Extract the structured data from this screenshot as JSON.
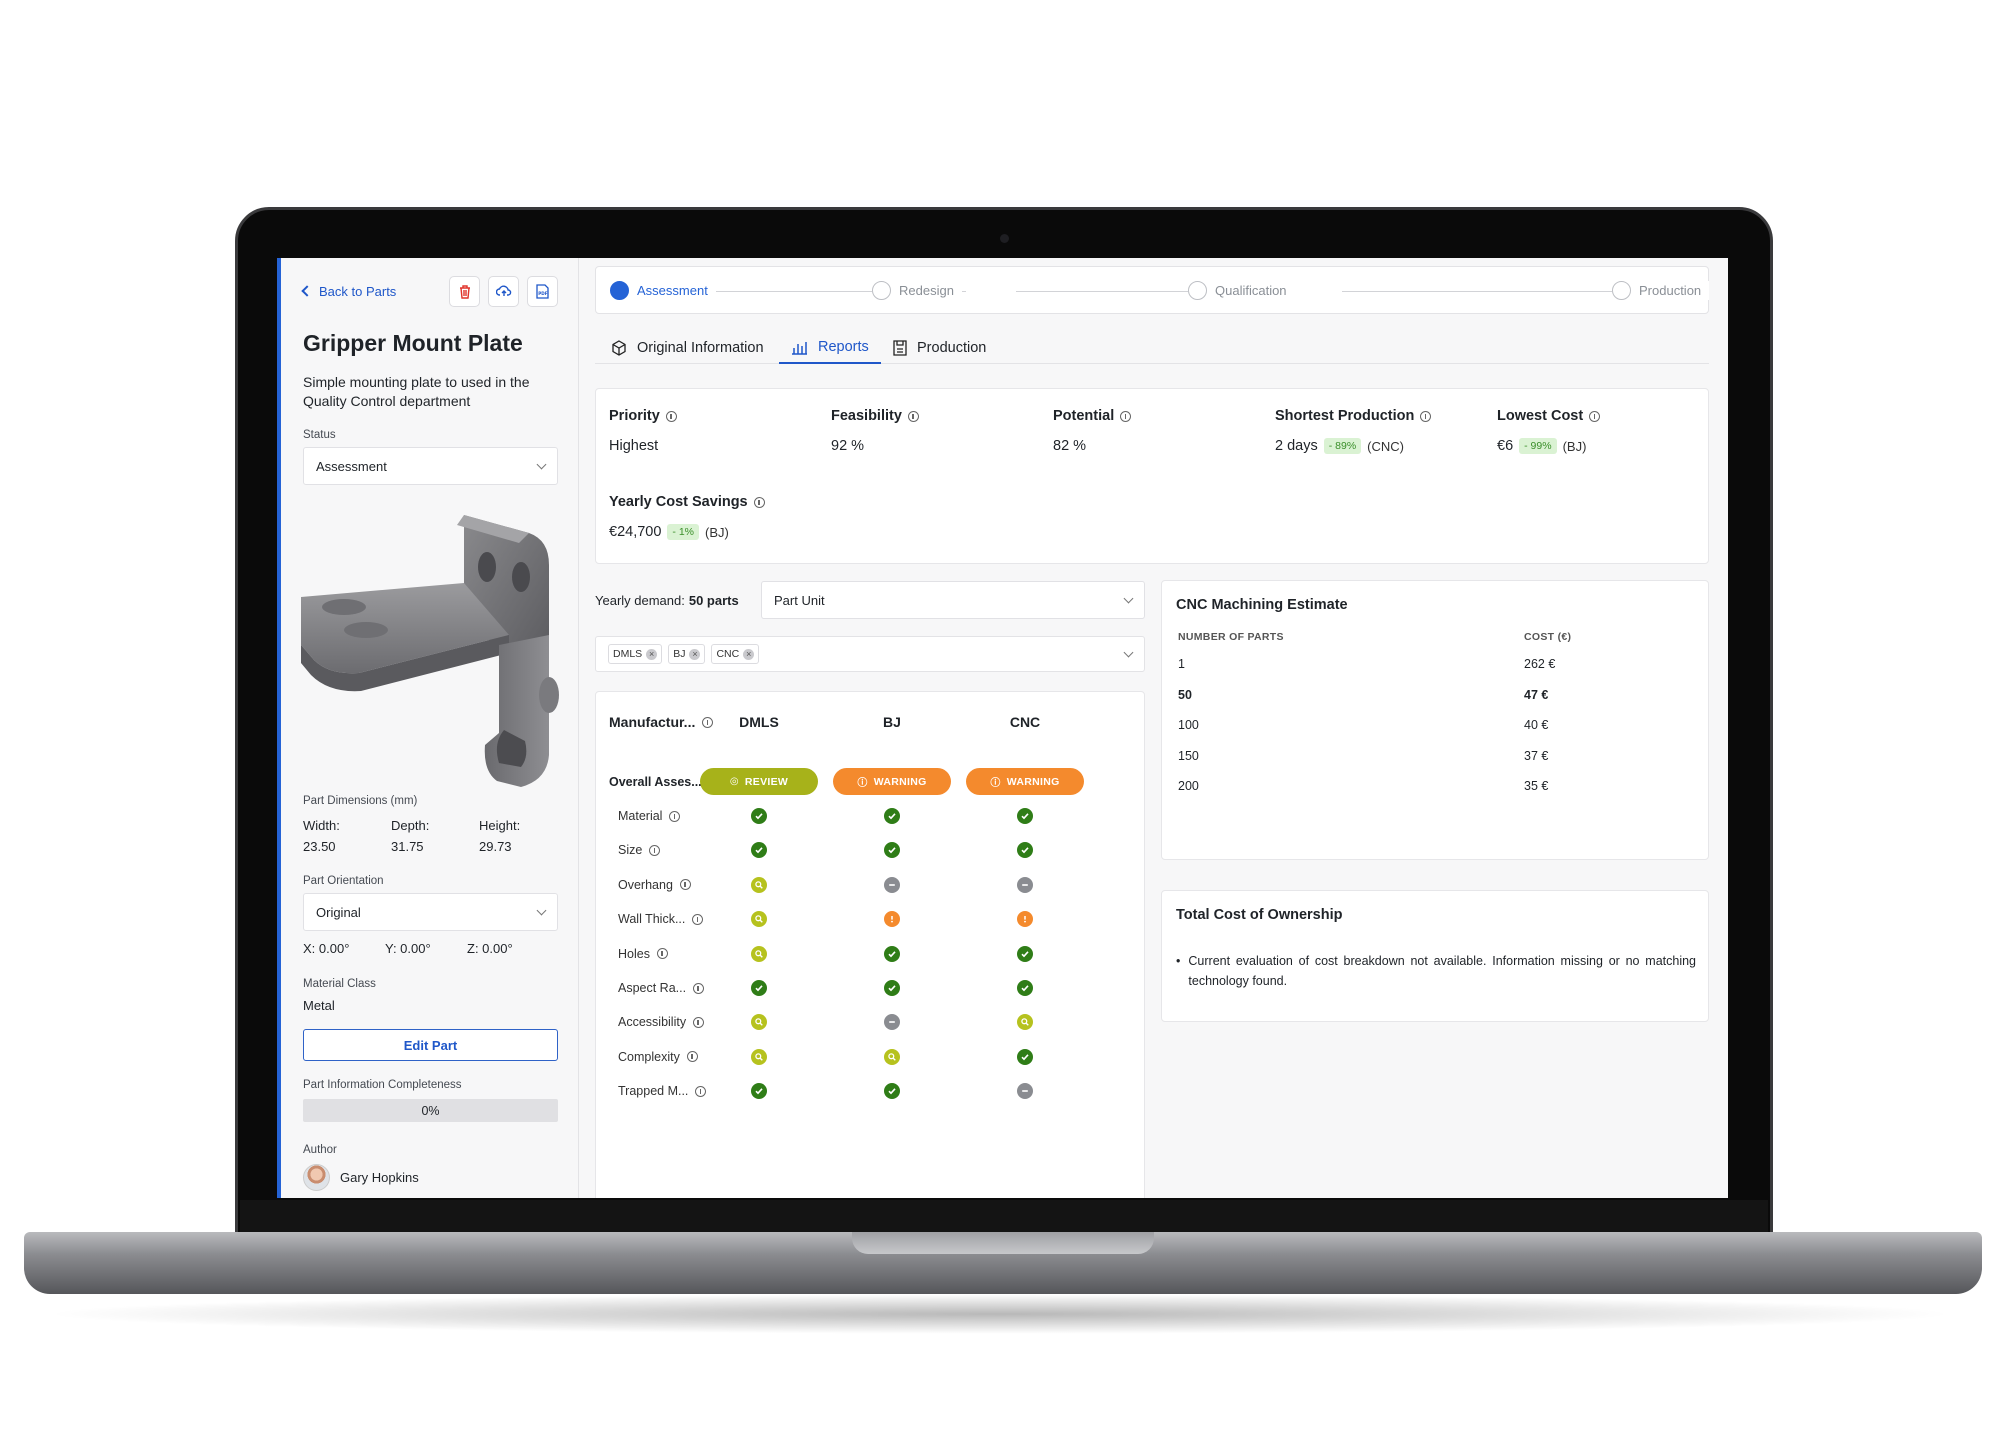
{
  "sidebar": {
    "back_label": "Back to Parts",
    "icons": [
      "trash-icon",
      "cloud-upload-icon",
      "pdf-icon"
    ],
    "title": "Gripper Mount Plate",
    "description": "Simple mounting plate to used in the Quality Control department",
    "status_label": "Status",
    "status_value": "Assessment",
    "dimensions_label": "Part Dimensions (mm)",
    "width_label": "Width:",
    "width_value": "23.50",
    "depth_label": "Depth:",
    "depth_value": "31.75",
    "height_label": "Height:",
    "height_value": "29.73",
    "orientation_label": "Part Orientation",
    "orientation_value": "Original",
    "x_rot": "X: 0.00°",
    "y_rot": "Y: 0.00°",
    "z_rot": "Z: 0.00°",
    "material_label": "Material Class",
    "material_value": "Metal",
    "edit_label": "Edit Part",
    "completeness_label": "Part Information Completeness",
    "completeness_value": "0%",
    "completeness_fraction": 0,
    "author_label": "Author",
    "author_name": "Gary Hopkins"
  },
  "stepper": {
    "steps": [
      "Assessment",
      "Redesign",
      "Qualification",
      "Production"
    ],
    "active": "Assessment",
    "accent": "#2563d6"
  },
  "tabs": [
    "Original Information",
    "Reports",
    "Production"
  ],
  "active_tab": "Reports",
  "metrics": {
    "priority_label": "Priority",
    "priority_value": "Highest",
    "feasibility_label": "Feasibility",
    "feasibility_value": "92 %",
    "potential_label": "Potential",
    "potential_value": "82 %",
    "shortest_label": "Shortest Production",
    "shortest_value": "2 days",
    "shortest_delta": "- 89%",
    "shortest_tech": "(CNC)",
    "lowest_label": "Lowest Cost",
    "lowest_value": "€6",
    "lowest_delta": "- 99%",
    "lowest_tech": "(BJ)",
    "savings_label": "Yearly Cost Savings",
    "savings_value": "€24,700",
    "savings_delta": "- 1%",
    "savings_tech": "(BJ)"
  },
  "demand": {
    "label": "Yearly demand:",
    "value": "50 parts",
    "unit_select": "Part Unit",
    "chips": [
      "DMLS",
      "BJ",
      "CNC"
    ]
  },
  "manufacturing": {
    "header_label": "Manufactur...",
    "columns": [
      "DMLS",
      "BJ",
      "CNC"
    ],
    "overall_label": "Overall Asses...",
    "overall": [
      "REVIEW",
      "WARNING",
      "WARNING"
    ],
    "rows": [
      {
        "label": "Material",
        "status": [
          "ok",
          "ok",
          "ok"
        ]
      },
      {
        "label": "Size",
        "status": [
          "ok",
          "ok",
          "ok"
        ]
      },
      {
        "label": "Overhang",
        "status": [
          "review",
          "na",
          "na"
        ]
      },
      {
        "label": "Wall Thick...",
        "status": [
          "review",
          "warn",
          "warn"
        ]
      },
      {
        "label": "Holes",
        "status": [
          "review",
          "ok",
          "ok"
        ]
      },
      {
        "label": "Aspect Ra...",
        "status": [
          "ok",
          "ok",
          "ok"
        ]
      },
      {
        "label": "Accessibility",
        "status": [
          "review",
          "na",
          "review"
        ]
      },
      {
        "label": "Complexity",
        "status": [
          "review",
          "review",
          "ok"
        ]
      },
      {
        "label": "Trapped M...",
        "status": [
          "ok",
          "ok",
          "na"
        ]
      }
    ]
  },
  "cnc_estimate": {
    "title": "CNC Machining Estimate",
    "col_parts": "NUMBER OF PARTS",
    "col_cost": "COST (€)",
    "rows": [
      {
        "parts": "1",
        "cost": "262 €"
      },
      {
        "parts": "50",
        "cost": "47 €"
      },
      {
        "parts": "100",
        "cost": "40 €"
      },
      {
        "parts": "150",
        "cost": "37 €"
      },
      {
        "parts": "200",
        "cost": "35 €"
      }
    ],
    "highlight_parts": "50"
  },
  "tco": {
    "title": "Total Cost of Ownership",
    "message": "Current evaluation of cost breakdown not available. Information missing or no matching technology found."
  },
  "colors": {
    "ok": "#2f7d17",
    "review": "#b6c21e",
    "warning": "#f48a2d",
    "na": "#8a8c91",
    "brand": "#1f57c9"
  }
}
